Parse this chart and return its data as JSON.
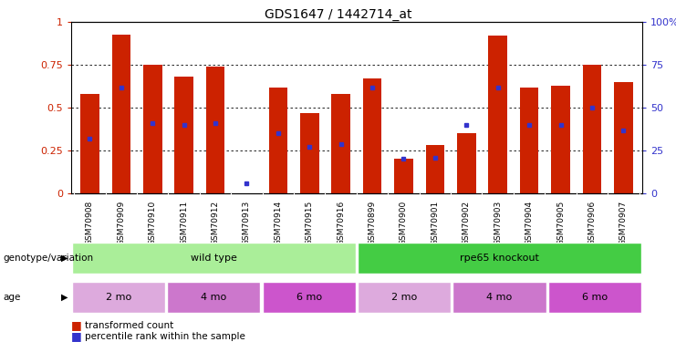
{
  "title": "GDS1647 / 1442714_at",
  "samples": [
    "GSM70908",
    "GSM70909",
    "GSM70910",
    "GSM70911",
    "GSM70912",
    "GSM70913",
    "GSM70914",
    "GSM70915",
    "GSM70916",
    "GSM70899",
    "GSM70900",
    "GSM70901",
    "GSM70902",
    "GSM70903",
    "GSM70904",
    "GSM70905",
    "GSM70906",
    "GSM70907"
  ],
  "transformed_count": [
    0.58,
    0.93,
    0.75,
    0.68,
    0.74,
    0.0,
    0.62,
    0.47,
    0.58,
    0.67,
    0.2,
    0.28,
    0.35,
    0.92,
    0.62,
    0.63,
    0.75,
    0.65
  ],
  "percentile_rank": [
    0.32,
    0.62,
    0.41,
    0.4,
    0.41,
    0.06,
    0.35,
    0.27,
    0.29,
    0.62,
    0.2,
    0.21,
    0.4,
    0.62,
    0.4,
    0.4,
    0.5,
    0.37
  ],
  "bar_color": "#cc2200",
  "blue_color": "#3333cc",
  "genotype_groups": [
    {
      "label": "wild type",
      "start": 0,
      "end": 9,
      "color": "#aaee99"
    },
    {
      "label": "rpe65 knockout",
      "start": 9,
      "end": 18,
      "color": "#44cc44"
    }
  ],
  "age_groups": [
    {
      "label": "2 mo",
      "start": 0,
      "end": 3,
      "color": "#ddaadd"
    },
    {
      "label": "4 mo",
      "start": 3,
      "end": 6,
      "color": "#cc77cc"
    },
    {
      "label": "6 mo",
      "start": 6,
      "end": 9,
      "color": "#cc55cc"
    },
    {
      "label": "2 mo",
      "start": 9,
      "end": 12,
      "color": "#ddaadd"
    },
    {
      "label": "4 mo",
      "start": 12,
      "end": 15,
      "color": "#cc77cc"
    },
    {
      "label": "6 mo",
      "start": 15,
      "end": 18,
      "color": "#cc55cc"
    }
  ],
  "yticks_left": [
    0,
    0.25,
    0.5,
    0.75,
    1.0
  ],
  "ytick_labels_left": [
    "0",
    "0.25",
    "0.5",
    "0.75",
    "1"
  ],
  "yticks_right": [
    0,
    25,
    50,
    75,
    100
  ],
  "ytick_labels_right": [
    "0",
    "25",
    "50",
    "75",
    "100%"
  ]
}
